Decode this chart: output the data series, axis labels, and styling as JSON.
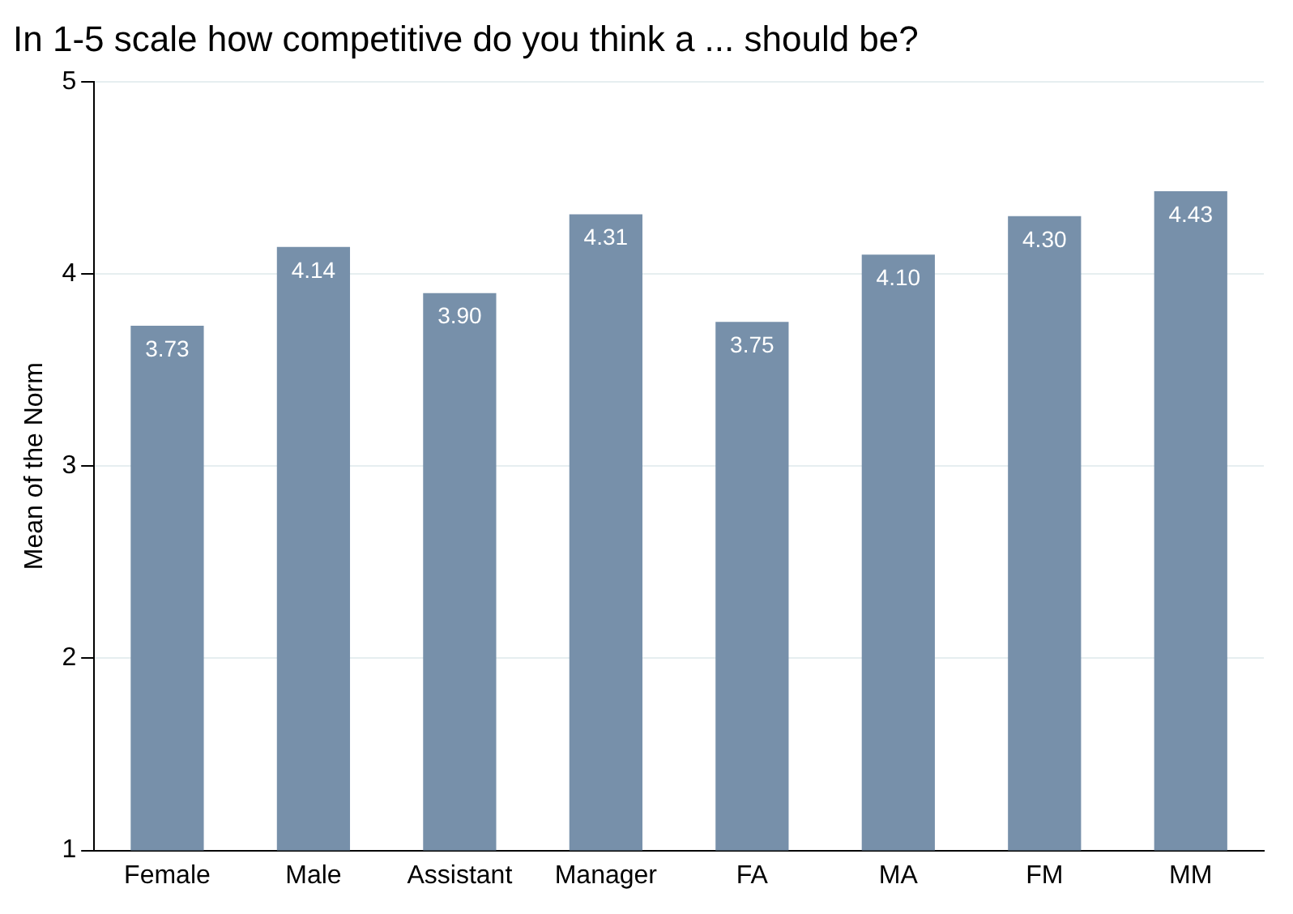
{
  "chart_data": {
    "type": "bar",
    "title": "In 1-5 scale how competitive do you think a ... should be?",
    "ylabel": "Mean of the Norm",
    "categories": [
      "Female",
      "Male",
      "Assistant",
      "Manager",
      "FA",
      "MA",
      "FM",
      "MM"
    ],
    "values": [
      3.73,
      4.14,
      3.9,
      4.31,
      3.75,
      4.1,
      4.3,
      4.43
    ],
    "value_labels": [
      "3.73",
      "4.14",
      "3.90",
      "4.31",
      "3.75",
      "4.10",
      "4.30",
      "4.43"
    ],
    "color": "#7790aa",
    "ylim": [
      1,
      5
    ],
    "yticks": [
      1,
      2,
      3,
      4,
      5
    ],
    "grid": "y"
  }
}
